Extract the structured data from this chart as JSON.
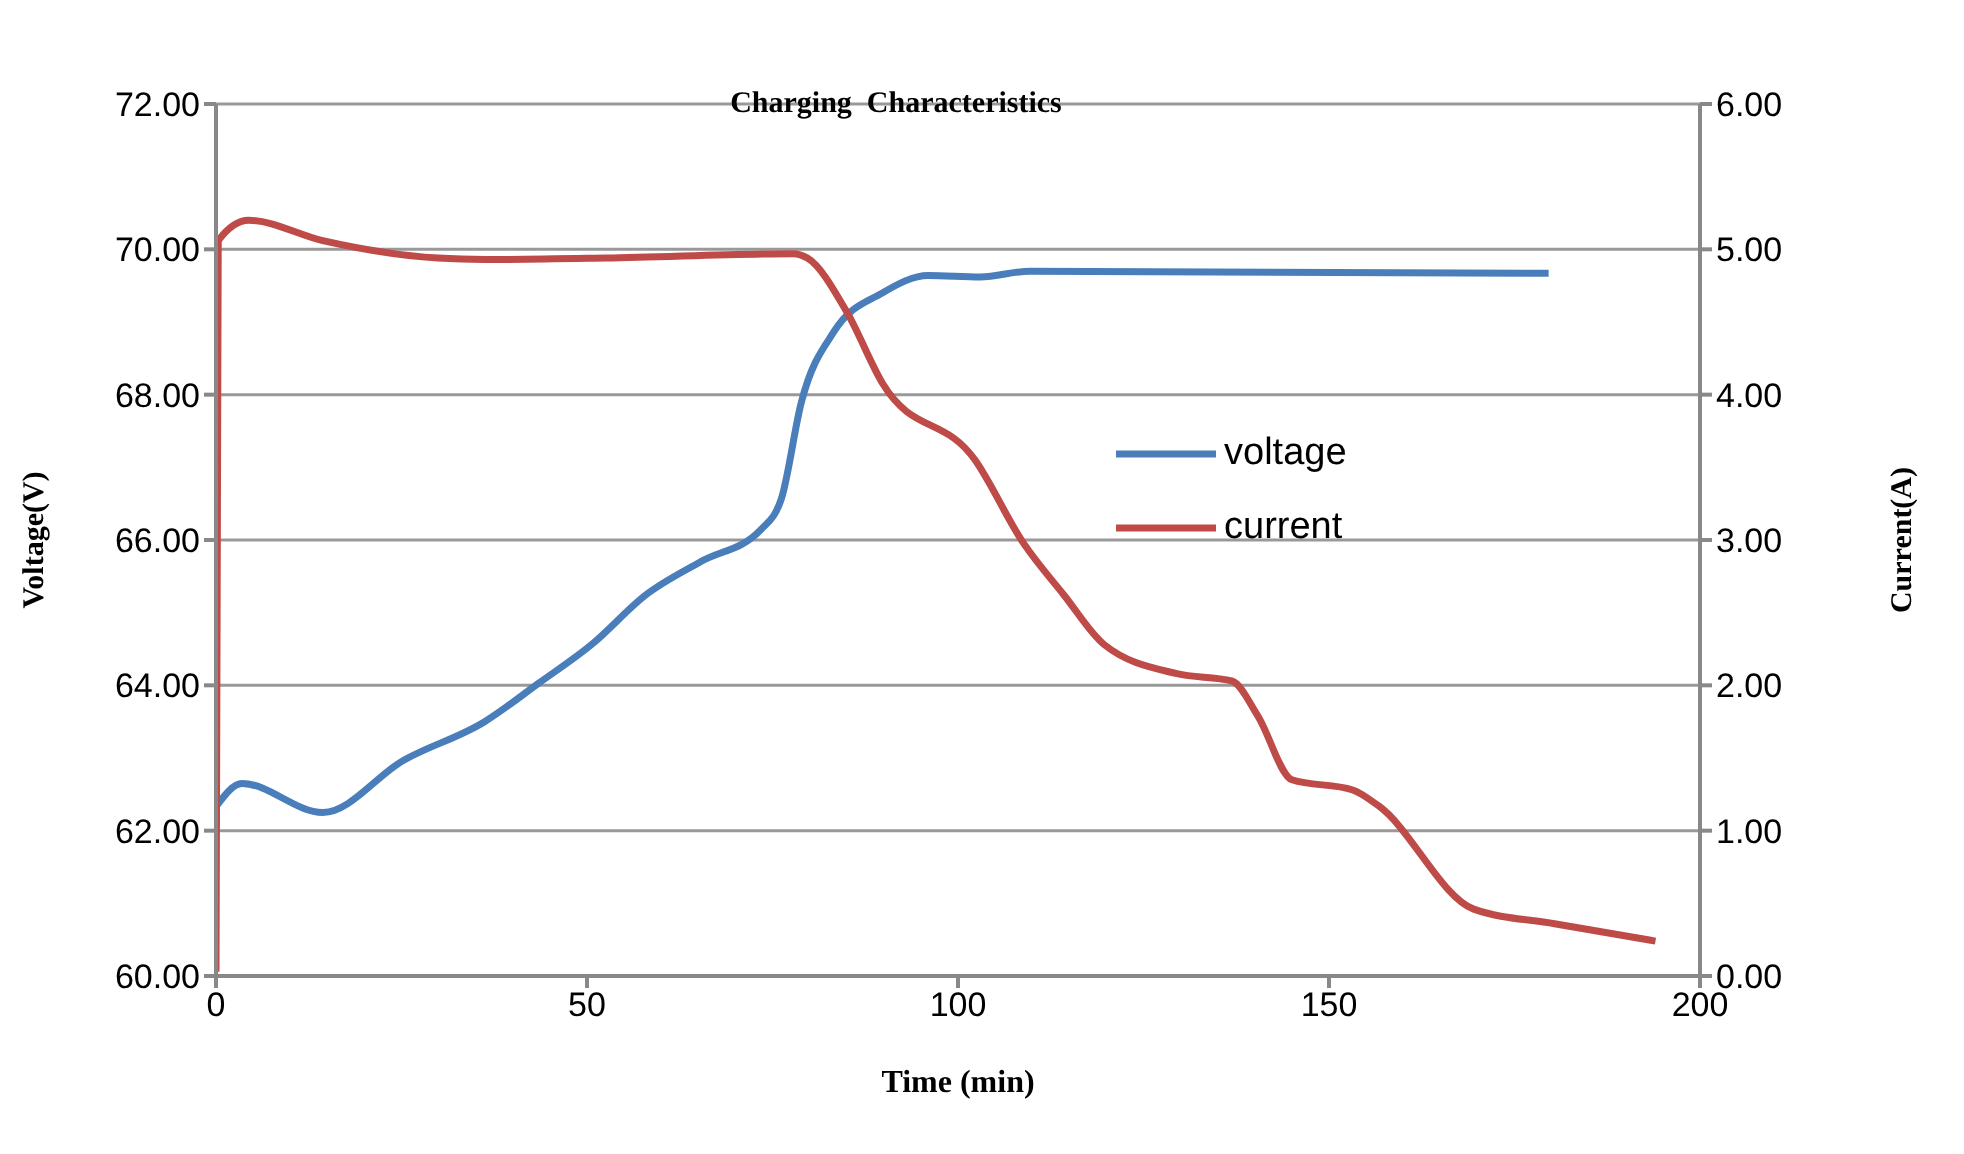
{
  "chart_data": {
    "type": "line",
    "title": "Charging  Characteristics",
    "xlabel": "Time (min)",
    "ylabel": "Voltage(V)",
    "y2label": "Current(A)",
    "xlim": [
      0,
      200
    ],
    "xticks": [
      0,
      50,
      100,
      150,
      200
    ],
    "ylim": [
      60,
      72
    ],
    "yticks": [
      {
        "value": 60,
        "label": "60.00"
      },
      {
        "value": 62,
        "label": "62.00"
      },
      {
        "value": 64,
        "label": "64.00"
      },
      {
        "value": 66,
        "label": "66.00"
      },
      {
        "value": 68,
        "label": "68.00"
      },
      {
        "value": 70,
        "label": "70.00"
      },
      {
        "value": 72,
        "label": "72.00"
      }
    ],
    "y2lim": [
      0,
      6
    ],
    "y2ticks": [
      {
        "value": 0,
        "label": "0.00"
      },
      {
        "value": 1,
        "label": "1.00"
      },
      {
        "value": 2,
        "label": "2.00"
      },
      {
        "value": 3,
        "label": "3.00"
      },
      {
        "value": 4,
        "label": "4.00"
      },
      {
        "value": 5,
        "label": "5.00"
      },
      {
        "value": 6,
        "label": "6.00"
      }
    ],
    "grid": "y",
    "legend": "right",
    "marker": "none",
    "line_style": "solid",
    "series": [
      {
        "name": "voltage",
        "color": "#4a7ebb",
        "x": [
          0,
          3.5,
          14.4,
          25.3,
          36.2,
          43.5,
          50.6,
          58,
          65.3,
          73.5,
          76.2,
          78.9,
          83.3,
          89.8,
          96,
          103,
          109.7,
          179.6
        ],
        "values": [
          62.33,
          62.65,
          62.25,
          62.97,
          63.5,
          64.03,
          64.56,
          65.25,
          65.7,
          66.15,
          66.57,
          67.9,
          68.87,
          69.4,
          69.64,
          69.62,
          69.7,
          69.67
        ]
      },
      {
        "name": "current",
        "color": "#be4b48",
        "axis": "y2",
        "x": [
          0,
          0.3,
          4.4,
          14.4,
          29.9,
          36.2,
          52.5,
          77.8,
          79.7,
          85,
          89.8,
          102.3,
          108.8,
          114.3,
          119.7,
          129.5,
          136.9,
          140.4,
          145,
          153.2,
          156.7,
          169.5,
          180.4,
          194
        ],
        "values": [
          0.03,
          5.06,
          5.2,
          5.06,
          4.94,
          4.93,
          4.94,
          4.97,
          4.94,
          4.57,
          4.08,
          3.55,
          2.98,
          2.62,
          2.28,
          2.08,
          2.03,
          1.79,
          1.35,
          1.28,
          1.17,
          0.46,
          0.36,
          0.24
        ]
      }
    ]
  }
}
